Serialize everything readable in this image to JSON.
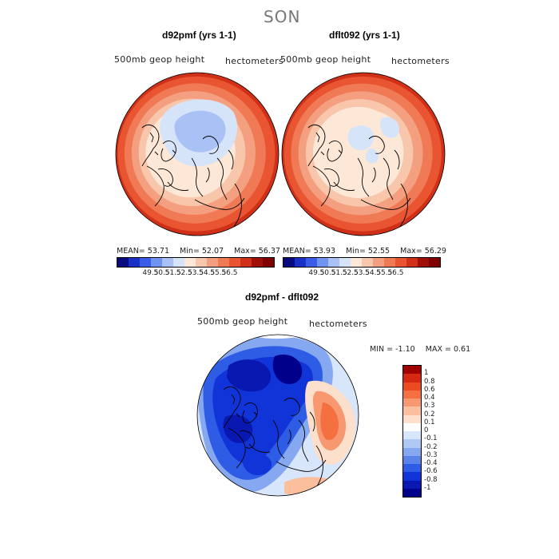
{
  "figure": {
    "season": "SON",
    "diff_title": "d92pmf - dflt092"
  },
  "chart_data": [
    {
      "type": "heatmap",
      "title": "d92pmf (yrs 1-1)",
      "variable": "500mb geop height",
      "units": "hectometers",
      "projection": "north polar stereographic",
      "stats": {
        "mean_label": "MEAN=",
        "mean": "53.71",
        "min_label": "Min=",
        "min": "52.07",
        "max_label": "Max=",
        "max": "56.37"
      },
      "levels": [
        "49.5",
        "50.5",
        "51.5",
        "52.5",
        "53.5",
        "54.5",
        "55.5",
        "56.5"
      ],
      "colors": [
        "#0a0a80",
        "#1830c8",
        "#3a5ce8",
        "#6f93f0",
        "#a9c1f5",
        "#d6e4fa",
        "#fde8d8",
        "#f8c6aa",
        "#f4a080",
        "#f07a55",
        "#e85530",
        "#d03018",
        "#a01008",
        "#800000"
      ]
    },
    {
      "type": "heatmap",
      "title": "dflt092 (yrs 1-1)",
      "variable": "500mb geop height",
      "units": "hectometers",
      "projection": "north polar stereographic",
      "stats": {
        "mean_label": "MEAN=",
        "mean": "53.93",
        "min_label": "Min=",
        "min": "52.55",
        "max_label": "Max=",
        "max": "56.29"
      },
      "levels": [
        "49.5",
        "50.5",
        "51.5",
        "52.5",
        "53.5",
        "54.5",
        "55.5",
        "56.5"
      ],
      "colors": [
        "#0a0a80",
        "#1830c8",
        "#3a5ce8",
        "#6f93f0",
        "#a9c1f5",
        "#d6e4fa",
        "#fde8d8",
        "#f8c6aa",
        "#f4a080",
        "#f07a55",
        "#e85530",
        "#d03018",
        "#a01008",
        "#800000"
      ]
    },
    {
      "type": "heatmap",
      "title": "d92pmf - dflt092",
      "variable": "500mb geop height",
      "units": "hectometers",
      "projection": "north polar stereographic",
      "stats": {
        "min_label": "MIN =",
        "min": "-1.10",
        "max_label": "MAX =",
        "max": "0.61"
      },
      "levels": [
        "1",
        "0.8",
        "0.6",
        "0.4",
        "0.3",
        "0.2",
        "0.1",
        "0",
        "-0.1",
        "-0.2",
        "-0.3",
        "-0.4",
        "-0.6",
        "-0.8",
        "-1"
      ],
      "colors": [
        "#a00000",
        "#d42810",
        "#ec4a20",
        "#f47040",
        "#f89870",
        "#fbbf9e",
        "#fde0cc",
        "#ffffff",
        "#d8e6fb",
        "#b0c8f5",
        "#86a8f0",
        "#5a84ea",
        "#2e5ce4",
        "#1034d8",
        "#0818b0",
        "#00008a"
      ]
    }
  ]
}
